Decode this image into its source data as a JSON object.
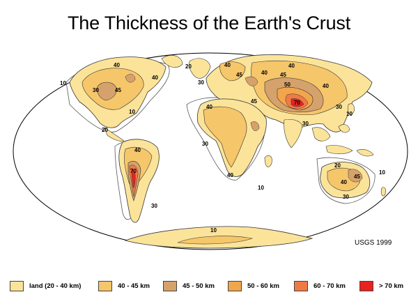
{
  "title": "The Thickness of the Earth's Crust",
  "credit": "USGS 1999",
  "colors": {
    "ocean": "#ffffff",
    "land": "#fbe49a",
    "c40_45": "#f6c66a",
    "c45_50": "#d6a26c",
    "c50_60": "#f2a64c",
    "c60_70": "#ef7a45",
    "c70plus": "#e8231f"
  },
  "legend": [
    {
      "label": "land (20 - 40 km)",
      "color": "#fbe49a"
    },
    {
      "label": "40 - 45 km",
      "color": "#f6c66a"
    },
    {
      "label": "45 - 50 km",
      "color": "#d6a26c"
    },
    {
      "label": "50 - 60 km",
      "color": "#f2a64c"
    },
    {
      "label": "60 - 70 km",
      "color": "#ef7a45"
    },
    {
      "label": "> 70 km",
      "color": "#e8231f"
    }
  ],
  "contour_labels": [
    "10",
    "40",
    "40",
    "30",
    "45",
    "10",
    "20",
    "20",
    "30",
    "40",
    "45",
    "40",
    "40",
    "45",
    "50",
    "70",
    "45",
    "40",
    "30",
    "30",
    "10",
    "40",
    "40",
    "30",
    "10",
    "70",
    "40",
    "30",
    "40",
    "45",
    "20",
    "10",
    "30",
    "10"
  ]
}
